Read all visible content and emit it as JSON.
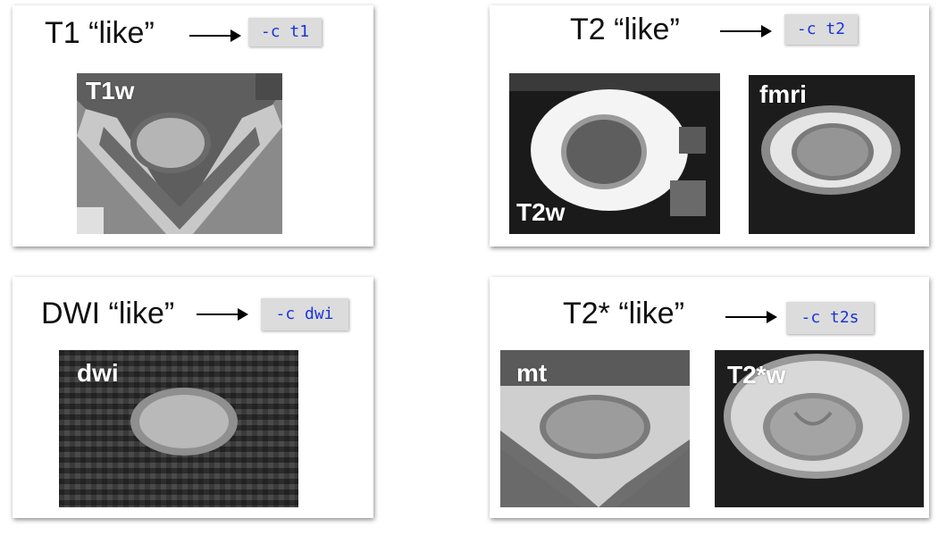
{
  "panels": {
    "t1": {
      "title": "T1 “like”",
      "flag": "-c t1",
      "images": {
        "t1w": "T1w"
      }
    },
    "t2": {
      "title": "T2 “like”",
      "flag": "-c t2",
      "images": {
        "t2w": "T2w",
        "fmri": "fmri"
      }
    },
    "dwi": {
      "title": "DWI “like”",
      "flag": "-c dwi",
      "images": {
        "dwi": "dwi"
      }
    },
    "t2s": {
      "title": "T2* “like”",
      "flag": "-c t2s",
      "images": {
        "mt": "mt",
        "t2sw": "T2*w"
      }
    }
  },
  "colors": {
    "flag_text": "#1a35d8",
    "flag_bg": "#dcdcdc",
    "label": "#ffffff"
  }
}
